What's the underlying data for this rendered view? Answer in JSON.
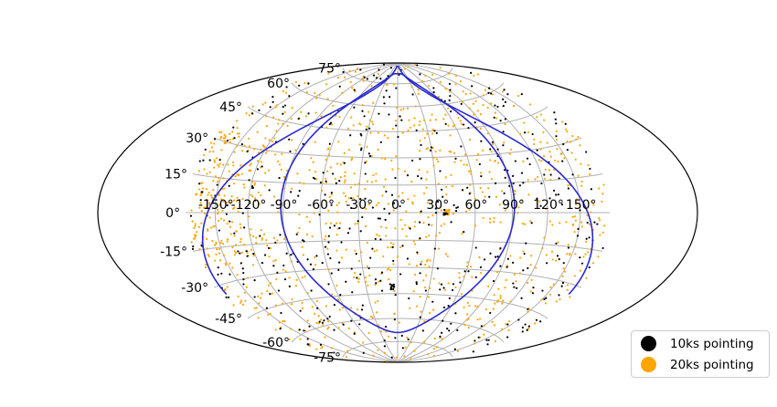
{
  "chart_data": {
    "type": "scatter",
    "projection": "aitoff/hammer all-sky",
    "title": "",
    "xlabel": "",
    "ylabel": "",
    "grid": true,
    "legend_position": "lower-right",
    "lon_ticks": [
      "-150°",
      "-120°",
      "-90°",
      "-60°",
      "-30°",
      "0°",
      "30°",
      "60°",
      "90°",
      "120°",
      "150°"
    ],
    "lat_ticks": [
      "75°",
      "60°",
      "45°",
      "30°",
      "15°",
      "0°",
      "-15°",
      "-30°",
      "-45°",
      "-60°",
      "-75°"
    ],
    "lon_tick_values": [
      -150,
      -120,
      -90,
      -60,
      -30,
      0,
      30,
      60,
      90,
      120,
      150
    ],
    "lat_tick_values": [
      75,
      60,
      45,
      30,
      15,
      0,
      -15,
      -30,
      -45,
      -60,
      -75
    ],
    "series": [
      {
        "name": "10ks pointing",
        "color": "#000000",
        "approx_count": 480
      },
      {
        "name": "20ks pointing",
        "color": "#FFA500",
        "approx_count": 900
      }
    ],
    "boundary_color": "#2a2ad0",
    "grid_color": "#b0b0b0"
  }
}
